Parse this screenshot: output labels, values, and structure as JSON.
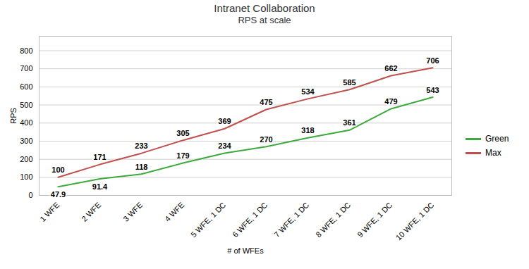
{
  "chart_data": {
    "type": "line",
    "title": "Intranet Collaboration",
    "subtitle": "RPS at scale",
    "xlabel": "# of WFEs",
    "ylabel": "RPS",
    "categories": [
      "1 WFE",
      "2 WFE",
      "3 WFE",
      "4 WFE",
      "5 WFE, 1 DC",
      "6 WFE, 1 DC",
      "7 WFE, 1 DC",
      "8 WFE, 1 DC",
      "9 WFE, 1 DC",
      "10 WFE, 1 DC"
    ],
    "series": [
      {
        "name": "Green",
        "color": "#3DAA3D",
        "values": [
          47.9,
          91.4,
          118,
          179,
          234,
          270,
          318,
          361,
          479,
          543
        ]
      },
      {
        "name": "Max",
        "color": "#C0504D",
        "values": [
          100,
          171,
          233,
          305,
          369,
          475,
          534,
          585,
          662,
          706
        ]
      }
    ],
    "ylim": [
      0,
      880
    ],
    "yticks": [
      0,
      100,
      200,
      300,
      400,
      500,
      600,
      700,
      800
    ],
    "grid": true,
    "legend": "right",
    "data_labels": true
  }
}
